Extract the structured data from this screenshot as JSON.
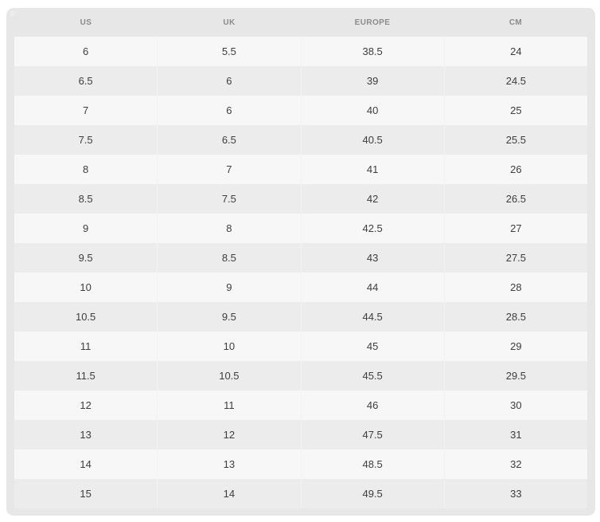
{
  "size_chart": {
    "headers": [
      "US",
      "UK",
      "EUROPE",
      "CM"
    ],
    "rows": [
      [
        "6",
        "5.5",
        "38.5",
        "24"
      ],
      [
        "6.5",
        "6",
        "39",
        "24.5"
      ],
      [
        "7",
        "6",
        "40",
        "25"
      ],
      [
        "7.5",
        "6.5",
        "40.5",
        "25.5"
      ],
      [
        "8",
        "7",
        "41",
        "26"
      ],
      [
        "8.5",
        "7.5",
        "42",
        "26.5"
      ],
      [
        "9",
        "8",
        "42.5",
        "27"
      ],
      [
        "9.5",
        "8.5",
        "43",
        "27.5"
      ],
      [
        "10",
        "9",
        "44",
        "28"
      ],
      [
        "10.5",
        "9.5",
        "44.5",
        "28.5"
      ],
      [
        "11",
        "10",
        "45",
        "29"
      ],
      [
        "11.5",
        "10.5",
        "45.5",
        "29.5"
      ],
      [
        "12",
        "11",
        "46",
        "30"
      ],
      [
        "13",
        "12",
        "47.5",
        "31"
      ],
      [
        "14",
        "13",
        "48.5",
        "32"
      ],
      [
        "15",
        "14",
        "49.5",
        "33"
      ]
    ],
    "colors": {
      "card_background": "#e7e7e7",
      "row_light": "#f7f7f7",
      "row_dark": "#ececec",
      "divider": "#f2f2f2",
      "header_text": "#8b8b8b",
      "cell_text": "#3d3d3d"
    }
  }
}
